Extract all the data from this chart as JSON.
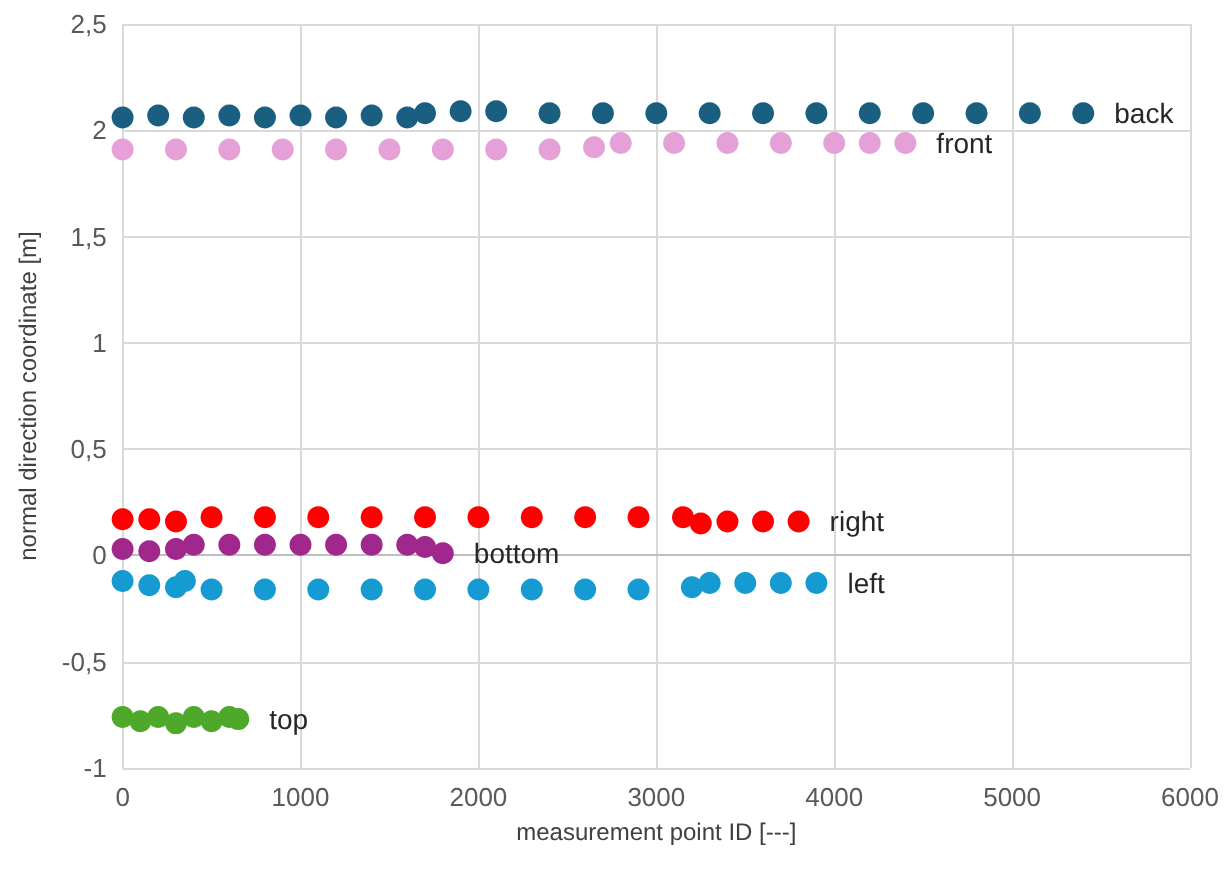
{
  "chart_data": {
    "type": "scatter",
    "xlabel": "measurement point ID [---]",
    "ylabel": "normal direction coordinate [m]",
    "xlim": [
      0,
      6000
    ],
    "xticks": [
      0,
      1000,
      2000,
      3000,
      4000,
      5000,
      6000
    ],
    "ylim": [
      -1,
      2.5
    ],
    "yticks": [
      {
        "value": -1,
        "label": "-1"
      },
      {
        "value": -0.5,
        "label": "-0,5"
      },
      {
        "value": 0,
        "label": "0"
      },
      {
        "value": 0.5,
        "label": "0,5"
      },
      {
        "value": 1,
        "label": "1"
      },
      {
        "value": 1.5,
        "label": "1,5"
      },
      {
        "value": 2,
        "label": "2"
      },
      {
        "value": 2.5,
        "label": "2,5"
      }
    ],
    "grid": true,
    "marker": "circle",
    "legend": false,
    "series": [
      {
        "name": "back",
        "color": "#1a5f80",
        "x": [
          0,
          200,
          400,
          600,
          800,
          1000,
          1200,
          1400,
          1600,
          1700,
          1900,
          2100,
          2400,
          2700,
          3000,
          3300,
          3600,
          3900,
          4200,
          4500,
          4800,
          5100,
          5400
        ],
        "values": [
          2.06,
          2.07,
          2.06,
          2.07,
          2.06,
          2.07,
          2.06,
          2.07,
          2.06,
          2.08,
          2.09,
          2.09,
          2.08,
          2.08,
          2.08,
          2.08,
          2.08,
          2.08,
          2.08,
          2.08,
          2.08,
          2.08,
          2.08
        ]
      },
      {
        "name": "front",
        "color": "#e6a0d8",
        "x": [
          0,
          300,
          600,
          900,
          1200,
          1500,
          1800,
          2100,
          2400,
          2650,
          2800,
          3100,
          3400,
          3700,
          4000,
          4200,
          4400
        ],
        "values": [
          1.91,
          1.91,
          1.91,
          1.91,
          1.91,
          1.91,
          1.91,
          1.91,
          1.91,
          1.92,
          1.94,
          1.94,
          1.94,
          1.94,
          1.94,
          1.94,
          1.94
        ]
      },
      {
        "name": "right",
        "color": "#ff0000",
        "x": [
          0,
          150,
          300,
          500,
          800,
          1100,
          1400,
          1700,
          2000,
          2300,
          2600,
          2900,
          3150,
          3250,
          3400,
          3600,
          3800
        ],
        "values": [
          0.17,
          0.17,
          0.16,
          0.18,
          0.18,
          0.18,
          0.18,
          0.18,
          0.18,
          0.18,
          0.18,
          0.18,
          0.18,
          0.15,
          0.16,
          0.16,
          0.16
        ]
      },
      {
        "name": "bottom",
        "color": "#a0288c",
        "x": [
          0,
          150,
          300,
          400,
          600,
          800,
          1000,
          1200,
          1400,
          1600,
          1700,
          1800
        ],
        "values": [
          0.03,
          0.02,
          0.03,
          0.05,
          0.05,
          0.05,
          0.05,
          0.05,
          0.05,
          0.05,
          0.04,
          0.01
        ]
      },
      {
        "name": "left",
        "color": "#159bd2",
        "x": [
          0,
          150,
          300,
          350,
          500,
          800,
          1100,
          1400,
          1700,
          2000,
          2300,
          2600,
          2900,
          3200,
          3300,
          3500,
          3700,
          3900
        ],
        "values": [
          -0.12,
          -0.14,
          -0.15,
          -0.12,
          -0.16,
          -0.16,
          -0.16,
          -0.16,
          -0.16,
          -0.16,
          -0.16,
          -0.16,
          -0.16,
          -0.15,
          -0.13,
          -0.13,
          -0.13,
          -0.13
        ]
      },
      {
        "name": "top",
        "color": "#4ea82a",
        "x": [
          0,
          100,
          200,
          300,
          400,
          500,
          600,
          650
        ],
        "values": [
          -0.76,
          -0.78,
          -0.76,
          -0.79,
          -0.76,
          -0.78,
          -0.76,
          -0.77
        ]
      }
    ]
  }
}
